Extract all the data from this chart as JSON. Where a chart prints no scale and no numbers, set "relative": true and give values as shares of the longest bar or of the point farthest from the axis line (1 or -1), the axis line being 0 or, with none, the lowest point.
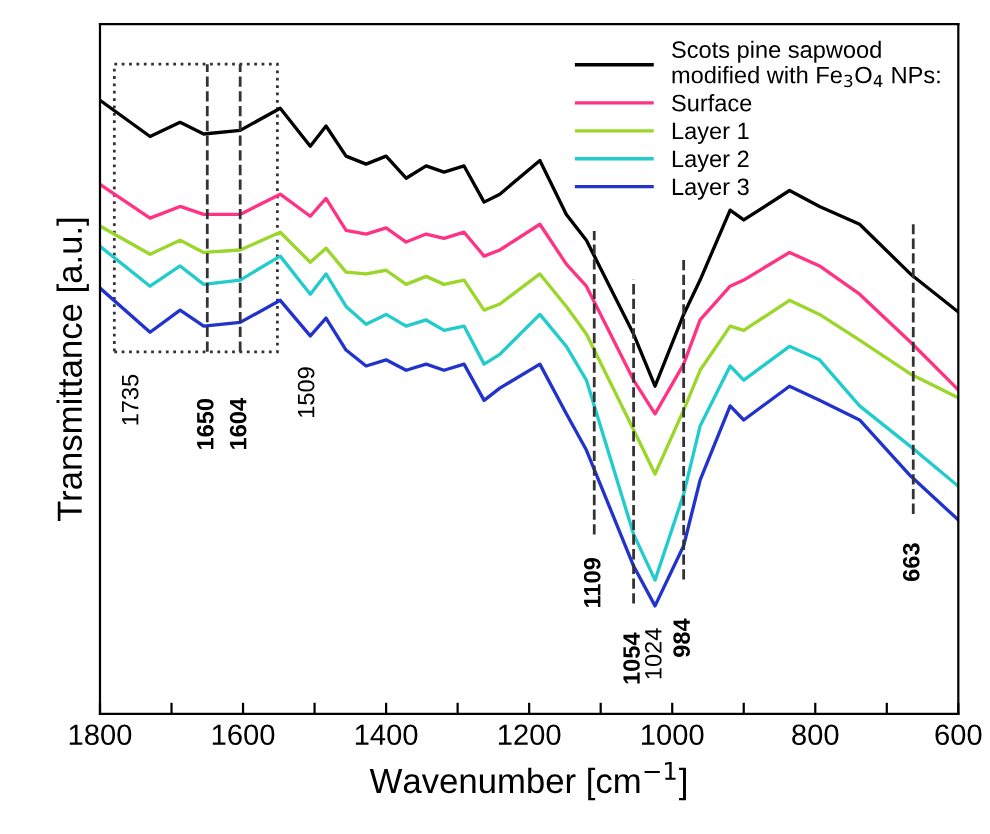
{
  "chart_data": {
    "type": "line",
    "relative": true,
    "xlabel": "Wavenumber [cm$^{−1}$]",
    "ylabel": "Transmittance [a.u.]",
    "x": [
      1800,
      1730,
      1688,
      1655,
      1604,
      1548,
      1506,
      1484,
      1456,
      1428,
      1400,
      1372,
      1344,
      1319,
      1291,
      1263,
      1241,
      1185,
      1148,
      1120,
      1054,
      1024,
      984,
      961,
      919,
      900,
      836,
      794,
      738,
      667,
      600
    ],
    "xlim": [
      1800,
      600
    ],
    "xticks": [
      1800,
      {
        "value": 1700,
        "label": null
      },
      1600,
      {
        "value": 1500,
        "label": null
      },
      1400,
      {
        "value": 1300,
        "label": null
      },
      1200,
      {
        "value": 1100,
        "label": null
      },
      1000,
      {
        "value": 900,
        "label": null
      },
      800,
      {
        "value": 700,
        "label": null
      },
      600
    ],
    "tick_labels": "x",
    "grid": false,
    "legend": "top right",
    "line_style": "solid",
    "series": [
      {
        "name": "Scots pine sapwood\nmodified with Fe$_{3}$O$_{4}$ NPs:",
        "color": "#000000",
        "values": [
          1.0,
          0.941,
          0.964,
          0.945,
          0.951,
          0.987,
          0.925,
          0.958,
          0.909,
          0.896,
          0.909,
          0.873,
          0.893,
          0.883,
          0.893,
          0.834,
          0.847,
          0.902,
          0.814,
          0.772,
          0.619,
          0.534,
          0.651,
          0.707,
          0.821,
          0.805,
          0.853,
          0.827,
          0.798,
          0.717,
          0.655
        ]
      },
      {
        "name": "Surface",
        "color": "#ff3385",
        "values": [
          0.863,
          0.808,
          0.827,
          0.814,
          0.814,
          0.847,
          0.811,
          0.84,
          0.788,
          0.782,
          0.792,
          0.769,
          0.782,
          0.775,
          0.785,
          0.746,
          0.756,
          0.798,
          0.733,
          0.697,
          0.544,
          0.489,
          0.57,
          0.642,
          0.697,
          0.707,
          0.752,
          0.73,
          0.684,
          0.606,
          0.528
        ]
      },
      {
        "name": "Layer 1",
        "color": "#9bd62a",
        "values": [
          0.795,
          0.749,
          0.772,
          0.752,
          0.756,
          0.785,
          0.736,
          0.759,
          0.72,
          0.717,
          0.723,
          0.7,
          0.713,
          0.7,
          0.707,
          0.658,
          0.668,
          0.717,
          0.664,
          0.619,
          0.463,
          0.391,
          0.495,
          0.56,
          0.632,
          0.625,
          0.674,
          0.651,
          0.609,
          0.554,
          0.515
        ]
      },
      {
        "name": "Layer 2",
        "color": "#22cccc",
        "values": [
          0.762,
          0.697,
          0.73,
          0.7,
          0.707,
          0.746,
          0.684,
          0.717,
          0.664,
          0.635,
          0.651,
          0.632,
          0.642,
          0.625,
          0.632,
          0.57,
          0.586,
          0.651,
          0.599,
          0.544,
          0.293,
          0.218,
          0.358,
          0.469,
          0.567,
          0.544,
          0.599,
          0.577,
          0.502,
          0.436,
          0.371
        ]
      },
      {
        "name": "Layer 3",
        "color": "#2233cc",
        "values": [
          0.694,
          0.622,
          0.658,
          0.632,
          0.638,
          0.674,
          0.616,
          0.645,
          0.593,
          0.567,
          0.577,
          0.56,
          0.57,
          0.56,
          0.57,
          0.511,
          0.531,
          0.57,
          0.489,
          0.43,
          0.241,
          0.176,
          0.274,
          0.381,
          0.502,
          0.479,
          0.534,
          0.511,
          0.479,
          0.388,
          0.316
        ]
      }
    ],
    "ref_lines": [
      {
        "axis": "x",
        "value": 1650,
        "label": "1650",
        "line_style": "dashed"
      },
      {
        "axis": "x",
        "value": 1604,
        "label": "1604",
        "line_style": "dashed"
      },
      {
        "axis": "x",
        "value": 1109,
        "label": "1109",
        "line_style": "dashed"
      },
      {
        "axis": "x",
        "value": 1054,
        "label": "1054",
        "line_style": "dashed"
      },
      {
        "axis": "x",
        "value": 984,
        "label": "984",
        "line_style": "dashed"
      },
      {
        "axis": "x",
        "value": 663,
        "label": "663",
        "line_style": "dashed"
      }
    ],
    "annotations": [
      "1735",
      "1509",
      "1024"
    ]
  }
}
